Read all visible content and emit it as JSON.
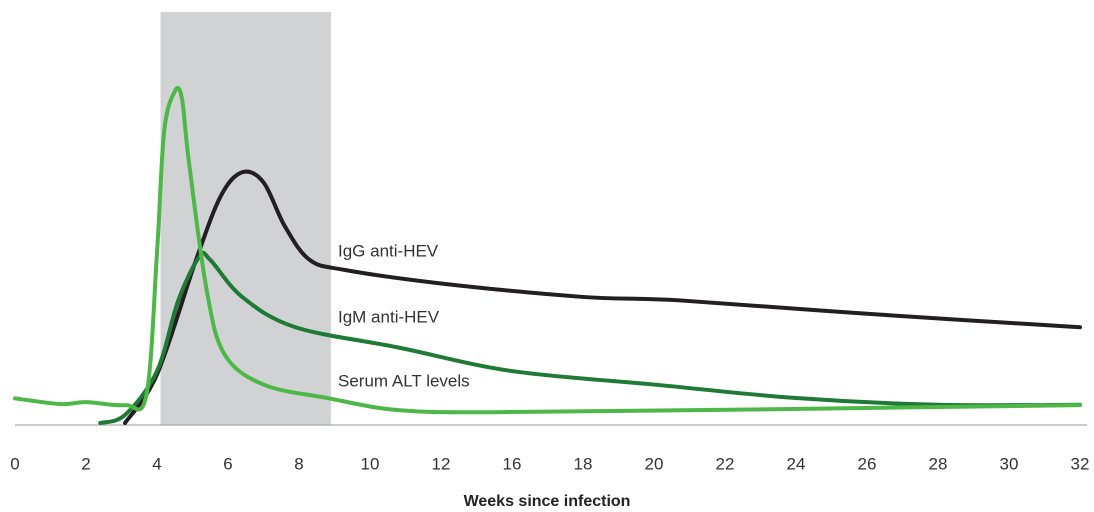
{
  "chart_data": {
    "type": "line",
    "xlabel": "Weeks since infection",
    "xticks": [
      0,
      2,
      4,
      6,
      8,
      10,
      12,
      16,
      18,
      20,
      22,
      24,
      26,
      28,
      30,
      32
    ],
    "ylim": [
      0,
      100
    ],
    "shaded_range": [
      4.1,
      8.9
    ],
    "shade_color": "#d1d2d4",
    "series": [
      {
        "name": "IgG anti-HEV",
        "color": "#231f20",
        "x": [
          3.1,
          4,
          5.1,
          5.8,
          6.4,
          7,
          7.6,
          8.3,
          9.3,
          12,
          18,
          20.7,
          26,
          32
        ],
        "values": [
          0.6,
          15,
          49,
          68,
          75,
          72,
          59,
          49,
          46,
          42,
          38,
          37,
          33,
          29
        ]
      },
      {
        "name": "IgM anti-HEV",
        "color": "#1f7a35",
        "x": [
          2.4,
          3.1,
          4,
          4.6,
          5.2,
          5.5,
          6.4,
          7.9,
          10.8,
          16,
          20,
          24,
          28,
          32
        ],
        "values": [
          0.6,
          3,
          16,
          37,
          50,
          49,
          38,
          29,
          23,
          16,
          12,
          8,
          6,
          6
        ]
      },
      {
        "name": "Serum ALT levels",
        "color": "#4db848",
        "x": [
          0,
          1.3,
          2,
          3.1,
          3.7,
          4,
          4.2,
          4.5,
          4.7,
          4.9,
          5.4,
          5.9,
          7,
          8.8,
          10.8,
          15,
          21.2,
          32
        ],
        "values": [
          7.9,
          6.2,
          6.8,
          5.9,
          8.8,
          51,
          87,
          99,
          97,
          78,
          40,
          21,
          12,
          8,
          4.4,
          3.8,
          4.4,
          5.9
        ]
      }
    ]
  }
}
